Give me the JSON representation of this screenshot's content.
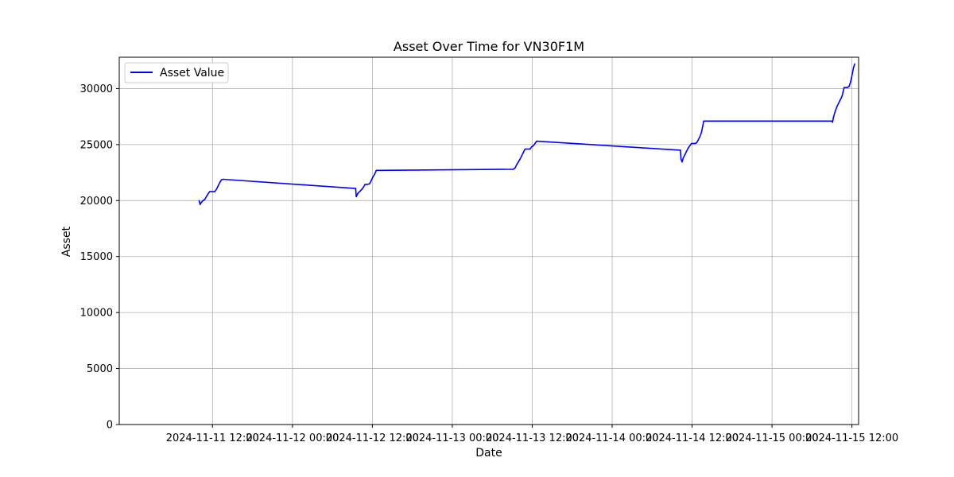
{
  "chart_data": {
    "type": "line",
    "title": "Asset Over Time for VN30F1M",
    "xlabel": "Date",
    "ylabel": "Asset",
    "ylim": [
      0,
      32800
    ],
    "yticks": [
      0,
      5000,
      10000,
      15000,
      20000,
      25000,
      30000
    ],
    "xlim": [
      "2024-11-10 22:00",
      "2024-11-15 13:00"
    ],
    "xticks": [
      "2024-11-11 12:00",
      "2024-11-12 00:00",
      "2024-11-12 12:00",
      "2024-11-13 00:00",
      "2024-11-13 12:00",
      "2024-11-14 00:00",
      "2024-11-14 12:00",
      "2024-11-15 00:00",
      "2024-11-15 12:00"
    ],
    "grid": true,
    "legend": {
      "position": "upper-left",
      "entries": [
        "Asset Value"
      ]
    },
    "series": [
      {
        "name": "Asset Value",
        "color": "#0000ff",
        "points": [
          [
            "2024-11-11 10:00",
            20000
          ],
          [
            "2024-11-11 10:08",
            19650
          ],
          [
            "2024-11-11 10:20",
            19850
          ],
          [
            "2024-11-11 10:35",
            20000
          ],
          [
            "2024-11-11 10:50",
            20100
          ],
          [
            "2024-11-11 11:05",
            20350
          ],
          [
            "2024-11-11 11:20",
            20600
          ],
          [
            "2024-11-11 11:35",
            20800
          ],
          [
            "2024-11-11 11:50",
            20800
          ],
          [
            "2024-11-11 12:05",
            20800
          ],
          [
            "2024-11-11 12:20",
            20800
          ],
          [
            "2024-11-11 12:35",
            21000
          ],
          [
            "2024-11-11 12:50",
            21300
          ],
          [
            "2024-11-11 13:05",
            21600
          ],
          [
            "2024-11-11 13:20",
            21850
          ],
          [
            "2024-11-11 13:35",
            21900
          ],
          [
            "2024-11-12 09:30",
            21080
          ],
          [
            "2024-11-12 09:35",
            20350
          ],
          [
            "2024-11-12 09:50",
            20650
          ],
          [
            "2024-11-12 10:10",
            20850
          ],
          [
            "2024-11-12 10:25",
            21000
          ],
          [
            "2024-11-12 10:40",
            21200
          ],
          [
            "2024-11-12 10:55",
            21450
          ],
          [
            "2024-11-12 11:15",
            21450
          ],
          [
            "2024-11-12 11:35",
            21500
          ],
          [
            "2024-11-12 11:50",
            21800
          ],
          [
            "2024-11-12 12:05",
            22100
          ],
          [
            "2024-11-12 12:20",
            22350
          ],
          [
            "2024-11-12 12:35",
            22700
          ],
          [
            "2024-11-12 12:50",
            22700
          ],
          [
            "2024-11-13 09:10",
            22800
          ],
          [
            "2024-11-13 09:25",
            22900
          ],
          [
            "2024-11-13 09:40",
            23200
          ],
          [
            "2024-11-13 09:55",
            23450
          ],
          [
            "2024-11-13 10:10",
            23700
          ],
          [
            "2024-11-13 10:25",
            24000
          ],
          [
            "2024-11-13 10:40",
            24300
          ],
          [
            "2024-11-13 10:55",
            24600
          ],
          [
            "2024-11-13 11:10",
            24600
          ],
          [
            "2024-11-13 11:25",
            24600
          ],
          [
            "2024-11-13 11:40",
            24600
          ],
          [
            "2024-11-13 11:55",
            24800
          ],
          [
            "2024-11-13 12:10",
            24900
          ],
          [
            "2024-11-13 12:25",
            25100
          ],
          [
            "2024-11-13 12:40",
            25300
          ],
          [
            "2024-11-14 10:15",
            24500
          ],
          [
            "2024-11-14 10:20",
            23700
          ],
          [
            "2024-11-14 10:30",
            23450
          ],
          [
            "2024-11-14 10:40",
            23800
          ],
          [
            "2024-11-14 10:55",
            24100
          ],
          [
            "2024-11-14 11:10",
            24400
          ],
          [
            "2024-11-14 11:25",
            24700
          ],
          [
            "2024-11-14 11:40",
            24900
          ],
          [
            "2024-11-14 11:55",
            25100
          ],
          [
            "2024-11-14 12:10",
            25100
          ],
          [
            "2024-11-14 12:25",
            25100
          ],
          [
            "2024-11-14 12:40",
            25150
          ],
          [
            "2024-11-14 12:55",
            25400
          ],
          [
            "2024-11-14 13:10",
            25700
          ],
          [
            "2024-11-14 13:25",
            26100
          ],
          [
            "2024-11-14 13:35",
            26600
          ],
          [
            "2024-11-14 13:45",
            27100
          ],
          [
            "2024-11-14 14:00",
            27100
          ],
          [
            "2024-11-15 09:00",
            27100
          ],
          [
            "2024-11-15 09:05",
            27000
          ],
          [
            "2024-11-15 09:15",
            27500
          ],
          [
            "2024-11-15 09:30",
            28000
          ],
          [
            "2024-11-15 09:45",
            28400
          ],
          [
            "2024-11-15 10:00",
            28700
          ],
          [
            "2024-11-15 10:15",
            29000
          ],
          [
            "2024-11-15 10:30",
            29300
          ],
          [
            "2024-11-15 10:40",
            29700
          ],
          [
            "2024-11-15 10:50",
            30100
          ],
          [
            "2024-11-15 11:05",
            30100
          ],
          [
            "2024-11-15 11:20",
            30100
          ],
          [
            "2024-11-15 11:35",
            30200
          ],
          [
            "2024-11-15 11:45",
            30500
          ],
          [
            "2024-11-15 11:55",
            30900
          ],
          [
            "2024-11-15 12:05",
            31400
          ],
          [
            "2024-11-15 12:15",
            31900
          ],
          [
            "2024-11-15 12:25",
            32200
          ]
        ]
      }
    ]
  }
}
